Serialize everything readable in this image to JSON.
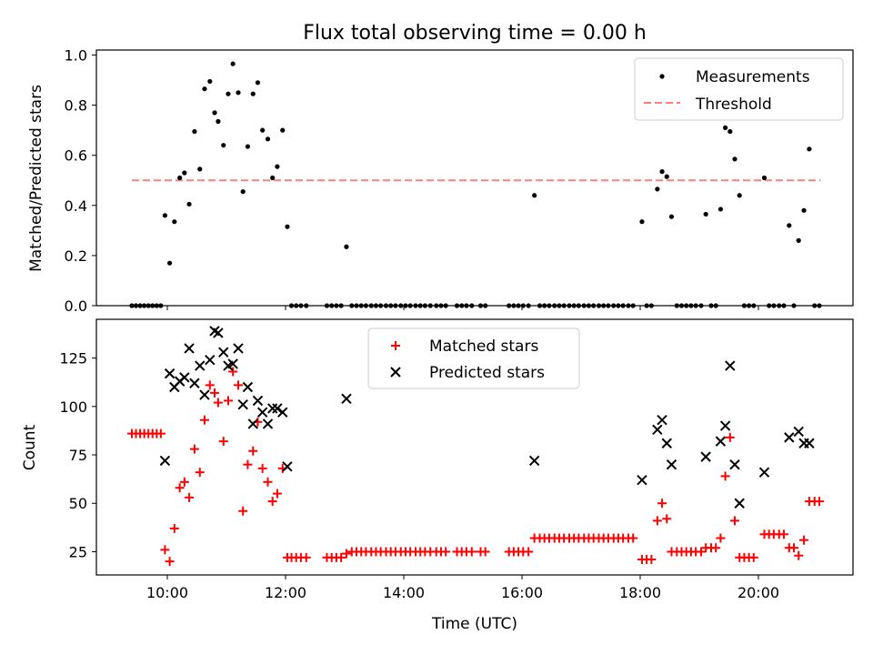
{
  "chart_data": {
    "title": "Flux total observing time = 0.00 h",
    "x_label": "Time (UTC)",
    "x_ticks": [
      "10:00",
      "12:00",
      "14:00",
      "16:00",
      "18:00",
      "20:00"
    ],
    "x_tick_hours": [
      10,
      12,
      14,
      16,
      18,
      20
    ],
    "x_range_hours": [
      8.8,
      21.6
    ],
    "colors": {
      "measurement": "#000000",
      "threshold": "#ff7f7f",
      "matched": "#ff0000",
      "predicted": "#000000"
    },
    "panels": [
      {
        "type": "scatter",
        "ylabel": "Matched/Predicted stars",
        "ylim": [
          0,
          1.02
        ],
        "y_ticks": [
          0,
          0.2,
          0.4,
          0.6,
          0.8,
          1.0
        ],
        "y_tick_labels": [
          "0.0",
          "0.2",
          "0.4",
          "0.6",
          "0.8",
          "1.0"
        ],
        "legend": [
          "Measurements",
          "Threshold"
        ],
        "threshold": {
          "value": 0.5,
          "x_range": [
            9.4,
            21.05
          ]
        },
        "measurements": [
          [
            9.4,
            0
          ],
          [
            9.47,
            0
          ],
          [
            9.54,
            0
          ],
          [
            9.61,
            0
          ],
          [
            9.68,
            0
          ],
          [
            9.75,
            0
          ],
          [
            9.82,
            0
          ],
          [
            9.89,
            0
          ],
          [
            9.96,
            0.36
          ],
          [
            10.04,
            0.17
          ],
          [
            10.12,
            0.335
          ],
          [
            10.21,
            0.51
          ],
          [
            10.29,
            0.53
          ],
          [
            10.37,
            0.405
          ],
          [
            10.46,
            0.695
          ],
          [
            10.55,
            0.545
          ],
          [
            10.63,
            0.865
          ],
          [
            10.72,
            0.895
          ],
          [
            10.8,
            0.77
          ],
          [
            10.86,
            0.735
          ],
          [
            10.95,
            0.64
          ],
          [
            11.03,
            0.845
          ],
          [
            11.11,
            0.965
          ],
          [
            11.2,
            0.85
          ],
          [
            11.28,
            0.455
          ],
          [
            11.36,
            0.635
          ],
          [
            11.45,
            0.845
          ],
          [
            11.53,
            0.89
          ],
          [
            11.61,
            0.7
          ],
          [
            11.7,
            0.665
          ],
          [
            11.78,
            0.51
          ],
          [
            11.86,
            0.555
          ],
          [
            11.95,
            0.7
          ],
          [
            12.03,
            0.315
          ],
          [
            12.1,
            0
          ],
          [
            12.18,
            0
          ],
          [
            12.26,
            0
          ],
          [
            12.35,
            0
          ],
          [
            12.7,
            0
          ],
          [
            12.78,
            0
          ],
          [
            12.86,
            0
          ],
          [
            12.94,
            0
          ],
          [
            13.03,
            0.235
          ],
          [
            13.12,
            0
          ],
          [
            13.2,
            0
          ],
          [
            13.28,
            0
          ],
          [
            13.36,
            0
          ],
          [
            13.45,
            0
          ],
          [
            13.53,
            0
          ],
          [
            13.61,
            0
          ],
          [
            13.7,
            0
          ],
          [
            13.78,
            0
          ],
          [
            13.86,
            0
          ],
          [
            13.95,
            0
          ],
          [
            14.03,
            0
          ],
          [
            14.11,
            0
          ],
          [
            14.2,
            0
          ],
          [
            14.28,
            0
          ],
          [
            14.36,
            0
          ],
          [
            14.45,
            0
          ],
          [
            14.55,
            0
          ],
          [
            14.63,
            0
          ],
          [
            14.71,
            0
          ],
          [
            14.9,
            0
          ],
          [
            14.98,
            0
          ],
          [
            15.06,
            0
          ],
          [
            15.15,
            0
          ],
          [
            15.3,
            0
          ],
          [
            15.38,
            0
          ],
          [
            15.78,
            0
          ],
          [
            15.86,
            0
          ],
          [
            15.94,
            0
          ],
          [
            16.02,
            0
          ],
          [
            16.11,
            0
          ],
          [
            16.21,
            0.44
          ],
          [
            16.3,
            0
          ],
          [
            16.38,
            0
          ],
          [
            16.46,
            0
          ],
          [
            16.55,
            0
          ],
          [
            16.63,
            0
          ],
          [
            16.71,
            0
          ],
          [
            16.8,
            0
          ],
          [
            16.88,
            0
          ],
          [
            16.96,
            0
          ],
          [
            17.05,
            0
          ],
          [
            17.13,
            0
          ],
          [
            17.21,
            0
          ],
          [
            17.3,
            0
          ],
          [
            17.38,
            0
          ],
          [
            17.46,
            0
          ],
          [
            17.55,
            0
          ],
          [
            17.63,
            0
          ],
          [
            17.71,
            0
          ],
          [
            17.8,
            0
          ],
          [
            17.88,
            0
          ],
          [
            18.03,
            0.335
          ],
          [
            18.11,
            0
          ],
          [
            18.19,
            0
          ],
          [
            18.29,
            0.465
          ],
          [
            18.37,
            0.535
          ],
          [
            18.45,
            0.515
          ],
          [
            18.53,
            0.355
          ],
          [
            18.62,
            0
          ],
          [
            18.7,
            0
          ],
          [
            18.78,
            0
          ],
          [
            18.86,
            0
          ],
          [
            18.94,
            0
          ],
          [
            19.03,
            0
          ],
          [
            19.11,
            0.365
          ],
          [
            19.2,
            0
          ],
          [
            19.28,
            0
          ],
          [
            19.36,
            0.385
          ],
          [
            19.44,
            0.71
          ],
          [
            19.52,
            0.695
          ],
          [
            19.6,
            0.585
          ],
          [
            19.68,
            0.44
          ],
          [
            19.76,
            0
          ],
          [
            19.84,
            0
          ],
          [
            19.92,
            0
          ],
          [
            20.1,
            0.51
          ],
          [
            20.18,
            0
          ],
          [
            20.26,
            0
          ],
          [
            20.35,
            0
          ],
          [
            20.43,
            0
          ],
          [
            20.52,
            0.32
          ],
          [
            20.6,
            0
          ],
          [
            20.68,
            0.26
          ],
          [
            20.77,
            0.38
          ],
          [
            20.86,
            0.625
          ],
          [
            20.95,
            0
          ],
          [
            21.03,
            0
          ]
        ]
      },
      {
        "type": "scatter",
        "ylabel": "Count",
        "ylim": [
          13,
          145
        ],
        "y_ticks": [
          25,
          50,
          75,
          100,
          125
        ],
        "y_tick_labels": [
          "25",
          "50",
          "75",
          "100",
          "125"
        ],
        "legend": [
          "Matched stars",
          "Predicted stars"
        ],
        "matched_stars": [
          [
            9.4,
            86
          ],
          [
            9.47,
            86
          ],
          [
            9.54,
            86
          ],
          [
            9.61,
            86
          ],
          [
            9.68,
            86
          ],
          [
            9.75,
            86
          ],
          [
            9.82,
            86
          ],
          [
            9.89,
            86
          ],
          [
            9.96,
            26
          ],
          [
            10.04,
            20
          ],
          [
            10.12,
            37
          ],
          [
            10.21,
            58
          ],
          [
            10.29,
            61
          ],
          [
            10.37,
            53
          ],
          [
            10.46,
            78
          ],
          [
            10.55,
            66
          ],
          [
            10.63,
            93
          ],
          [
            10.72,
            111
          ],
          [
            10.8,
            107
          ],
          [
            10.86,
            102
          ],
          [
            10.95,
            82
          ],
          [
            11.03,
            103
          ],
          [
            11.11,
            118
          ],
          [
            11.2,
            111
          ],
          [
            11.28,
            46
          ],
          [
            11.36,
            70
          ],
          [
            11.45,
            77
          ],
          [
            11.53,
            92
          ],
          [
            11.61,
            68
          ],
          [
            11.7,
            61
          ],
          [
            11.78,
            51
          ],
          [
            11.86,
            55
          ],
          [
            11.95,
            68
          ],
          [
            12.03,
            22
          ],
          [
            12.1,
            22
          ],
          [
            12.18,
            22
          ],
          [
            12.26,
            22
          ],
          [
            12.35,
            22
          ],
          [
            12.7,
            22
          ],
          [
            12.78,
            22
          ],
          [
            12.86,
            22
          ],
          [
            12.94,
            22
          ],
          [
            13.03,
            24
          ],
          [
            13.12,
            25
          ],
          [
            13.2,
            25
          ],
          [
            13.28,
            25
          ],
          [
            13.36,
            25
          ],
          [
            13.45,
            25
          ],
          [
            13.53,
            25
          ],
          [
            13.61,
            25
          ],
          [
            13.7,
            25
          ],
          [
            13.78,
            25
          ],
          [
            13.86,
            25
          ],
          [
            13.95,
            25
          ],
          [
            14.03,
            25
          ],
          [
            14.11,
            25
          ],
          [
            14.2,
            25
          ],
          [
            14.28,
            25
          ],
          [
            14.36,
            25
          ],
          [
            14.45,
            25
          ],
          [
            14.55,
            25
          ],
          [
            14.63,
            25
          ],
          [
            14.71,
            25
          ],
          [
            14.9,
            25
          ],
          [
            14.98,
            25
          ],
          [
            15.06,
            25
          ],
          [
            15.15,
            25
          ],
          [
            15.3,
            25
          ],
          [
            15.38,
            25
          ],
          [
            15.78,
            25
          ],
          [
            15.86,
            25
          ],
          [
            15.94,
            25
          ],
          [
            16.02,
            25
          ],
          [
            16.11,
            25
          ],
          [
            16.21,
            32
          ],
          [
            16.3,
            32
          ],
          [
            16.38,
            32
          ],
          [
            16.46,
            32
          ],
          [
            16.55,
            32
          ],
          [
            16.63,
            32
          ],
          [
            16.71,
            32
          ],
          [
            16.8,
            32
          ],
          [
            16.88,
            32
          ],
          [
            16.96,
            32
          ],
          [
            17.05,
            32
          ],
          [
            17.13,
            32
          ],
          [
            17.21,
            32
          ],
          [
            17.3,
            32
          ],
          [
            17.38,
            32
          ],
          [
            17.46,
            32
          ],
          [
            17.55,
            32
          ],
          [
            17.63,
            32
          ],
          [
            17.71,
            32
          ],
          [
            17.8,
            32
          ],
          [
            17.88,
            32
          ],
          [
            18.03,
            21
          ],
          [
            18.11,
            21
          ],
          [
            18.19,
            21
          ],
          [
            18.29,
            41
          ],
          [
            18.37,
            50
          ],
          [
            18.45,
            42
          ],
          [
            18.53,
            25
          ],
          [
            18.62,
            25
          ],
          [
            18.7,
            25
          ],
          [
            18.78,
            25
          ],
          [
            18.86,
            25
          ],
          [
            18.94,
            25
          ],
          [
            19.03,
            25
          ],
          [
            19.11,
            27
          ],
          [
            19.2,
            27
          ],
          [
            19.28,
            27
          ],
          [
            19.36,
            32
          ],
          [
            19.44,
            64
          ],
          [
            19.52,
            84
          ],
          [
            19.6,
            41
          ],
          [
            19.68,
            22
          ],
          [
            19.76,
            22
          ],
          [
            19.84,
            22
          ],
          [
            19.92,
            22
          ],
          [
            20.1,
            34
          ],
          [
            20.18,
            34
          ],
          [
            20.26,
            34
          ],
          [
            20.35,
            34
          ],
          [
            20.43,
            34
          ],
          [
            20.52,
            27
          ],
          [
            20.6,
            27
          ],
          [
            20.68,
            23
          ],
          [
            20.77,
            31
          ],
          [
            20.86,
            51
          ],
          [
            20.95,
            51
          ],
          [
            21.03,
            51
          ]
        ],
        "predicted_stars": [
          [
            9.96,
            72
          ],
          [
            10.04,
            117
          ],
          [
            10.12,
            110
          ],
          [
            10.21,
            113
          ],
          [
            10.29,
            115
          ],
          [
            10.37,
            130
          ],
          [
            10.46,
            112
          ],
          [
            10.55,
            121
          ],
          [
            10.63,
            106
          ],
          [
            10.72,
            124
          ],
          [
            10.8,
            139
          ],
          [
            10.86,
            138
          ],
          [
            10.95,
            128
          ],
          [
            11.03,
            121
          ],
          [
            11.11,
            122
          ],
          [
            11.2,
            130
          ],
          [
            11.28,
            101
          ],
          [
            11.36,
            110
          ],
          [
            11.45,
            91
          ],
          [
            11.53,
            103
          ],
          [
            11.61,
            97
          ],
          [
            11.7,
            91
          ],
          [
            11.78,
            99
          ],
          [
            11.86,
            99
          ],
          [
            11.95,
            97
          ],
          [
            12.03,
            69
          ],
          [
            13.03,
            104
          ],
          [
            16.21,
            72
          ],
          [
            18.03,
            62
          ],
          [
            18.29,
            88
          ],
          [
            18.37,
            93
          ],
          [
            18.45,
            81
          ],
          [
            18.53,
            70
          ],
          [
            19.11,
            74
          ],
          [
            19.36,
            82
          ],
          [
            19.44,
            90
          ],
          [
            19.52,
            121
          ],
          [
            19.6,
            70
          ],
          [
            19.68,
            50
          ],
          [
            20.1,
            66
          ],
          [
            20.52,
            84
          ],
          [
            20.68,
            87
          ],
          [
            20.77,
            81
          ],
          [
            20.86,
            81
          ]
        ]
      }
    ]
  }
}
